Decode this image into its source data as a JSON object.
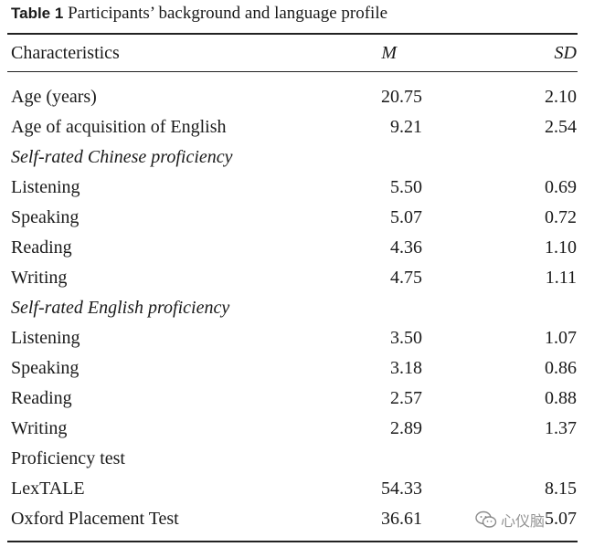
{
  "caption": {
    "label": "Table 1",
    "title": "Participants’ background and language profile"
  },
  "columns": [
    "Characteristics",
    "M",
    "SD"
  ],
  "rows": [
    {
      "label": "Age (years)",
      "m": "20.75",
      "sd": "2.10"
    },
    {
      "label": "Age of acquisition of English",
      "m": "9.21",
      "sd": "2.54"
    },
    {
      "label": "Self-rated Chinese proficiency",
      "m": "",
      "sd": ""
    },
    {
      "label": "Listening",
      "m": "5.50",
      "sd": "0.69"
    },
    {
      "label": "Speaking",
      "m": "5.07",
      "sd": "0.72"
    },
    {
      "label": "Reading",
      "m": "4.36",
      "sd": "1.10"
    },
    {
      "label": "Writing",
      "m": "4.75",
      "sd": "1.11"
    },
    {
      "label": "Self-rated English proficiency",
      "m": "",
      "sd": ""
    },
    {
      "label": "Listening",
      "m": "3.50",
      "sd": "1.07"
    },
    {
      "label": "Speaking",
      "m": "3.18",
      "sd": "0.86"
    },
    {
      "label": "Reading",
      "m": "2.57",
      "sd": "0.88"
    },
    {
      "label": "Writing",
      "m": "2.89",
      "sd": "1.37"
    },
    {
      "label": "Proficiency test",
      "m": "",
      "sd": ""
    },
    {
      "label": "LexTALE",
      "m": "54.33",
      "sd": "8.15"
    },
    {
      "label": "Oxford Placement Test",
      "m": "36.61",
      "sd": "5.07"
    }
  ],
  "watermark": {
    "text": "心仪脑",
    "icon": "wechat-icon"
  }
}
